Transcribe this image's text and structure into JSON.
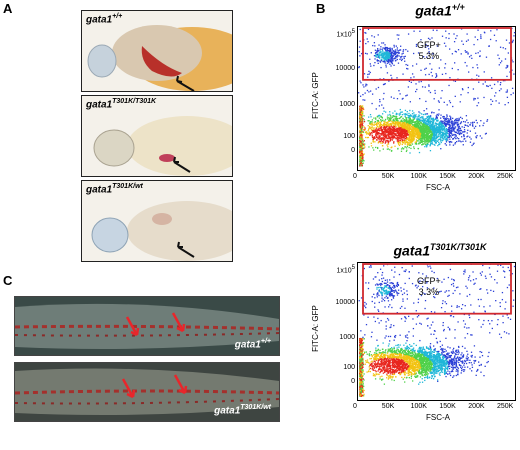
{
  "panels": {
    "a": {
      "letter": "A",
      "embryos": [
        {
          "genotype_base": "gata1",
          "genotype_sup": "+/+"
        },
        {
          "genotype_base": "gata1",
          "genotype_sup": "T301K/T301K"
        },
        {
          "genotype_base": "gata1",
          "genotype_sup": "T301K/wt"
        }
      ]
    },
    "b": {
      "letter": "B",
      "plots": [
        {
          "title_base": "gata1",
          "title_sup": "+/+",
          "gate_label": "GFP+",
          "gate_value": "5.3%",
          "xlabel": "FSC-A",
          "ylabel": "FITC-A: GFP"
        },
        {
          "title_base": "gata1",
          "title_sup": "T301K/T301K",
          "gate_label": "GFP+",
          "gate_value": "3.3%",
          "xlabel": "FSC-A",
          "ylabel": "FITC-A: GFP"
        }
      ],
      "x_ticks": [
        "0",
        "50K",
        "100K",
        "150K",
        "200K",
        "250K"
      ],
      "y_ticks": [
        "1x10",
        "10000",
        "1000",
        "100",
        "0"
      ],
      "y_top_exp": "5"
    },
    "c": {
      "letter": "C",
      "tails": [
        {
          "label_base": "gata1",
          "label_sup": "+/+"
        },
        {
          "label_base": "gata1",
          "label_sup": "T301K/wt"
        }
      ]
    }
  },
  "colors": {
    "gate": "#d0282e",
    "arrow_red": "#e8262b",
    "blood": "#b8302a"
  },
  "chart_data": [
    {
      "type": "scatter",
      "title": "gata1+/+",
      "xlabel": "FSC-A",
      "ylabel": "FITC-A: GFP",
      "x_ticks": [
        "0",
        "50K",
        "100K",
        "150K",
        "200K",
        "250K"
      ],
      "y_ticks": [
        "0",
        "100",
        "1000",
        "10000",
        "1x10^5"
      ],
      "gate": {
        "label": "GFP+",
        "percent": 5.3
      }
    },
    {
      "type": "scatter",
      "title": "gata1T301K/T301K",
      "xlabel": "FSC-A",
      "ylabel": "FITC-A: GFP",
      "x_ticks": [
        "0",
        "50K",
        "100K",
        "150K",
        "200K",
        "250K"
      ],
      "y_ticks": [
        "0",
        "100",
        "1000",
        "10000",
        "1x10^5"
      ],
      "gate": {
        "label": "GFP+",
        "percent": 3.3
      }
    }
  ]
}
